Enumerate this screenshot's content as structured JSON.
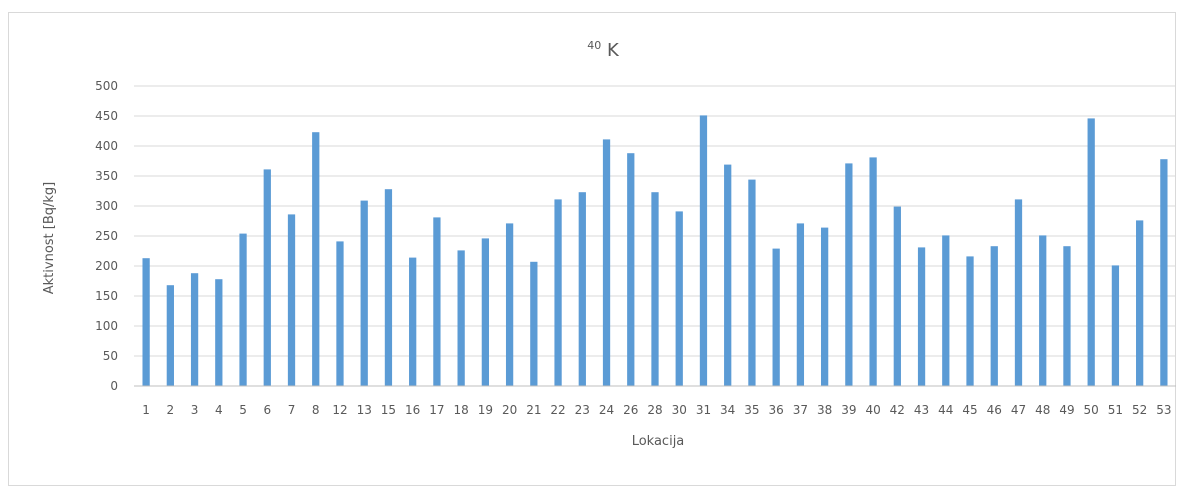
{
  "chart_data": {
    "type": "bar",
    "title_superscript": "40",
    "title_main": "K",
    "xlabel": "Lokacija",
    "ylabel": "Aktivnost [Bq/kg]",
    "ylim": [
      0,
      500
    ],
    "yticks": [
      "0",
      "50",
      "100",
      "150",
      "200",
      "250",
      "300",
      "350",
      "400",
      "450",
      "500"
    ],
    "grid": true,
    "legend": "none",
    "colors": {
      "bar": "#5b9bd5",
      "grid": "#d9d9d9",
      "axis": "#bfbfbf",
      "text": "#595959"
    },
    "categories": [
      "1",
      "2",
      "3",
      "4",
      "5",
      "6",
      "7",
      "8",
      "12",
      "13",
      "15",
      "16",
      "17",
      "18",
      "19",
      "20",
      "21",
      "22",
      "23",
      "24",
      "26",
      "28",
      "30",
      "31",
      "34",
      "35",
      "36",
      "37",
      "38",
      "39",
      "40",
      "42",
      "43",
      "44",
      "45",
      "46",
      "47",
      "48",
      "49",
      "50",
      "51",
      "52",
      "53"
    ],
    "values": [
      213,
      168,
      188,
      178,
      254,
      361,
      286,
      423,
      241,
      309,
      328,
      214,
      281,
      226,
      246,
      271,
      207,
      311,
      323,
      411,
      388,
      323,
      291,
      451,
      369,
      344,
      229,
      271,
      264,
      371,
      381,
      299,
      231,
      251,
      216,
      233,
      311,
      251,
      233,
      446,
      201,
      276,
      378
    ]
  }
}
